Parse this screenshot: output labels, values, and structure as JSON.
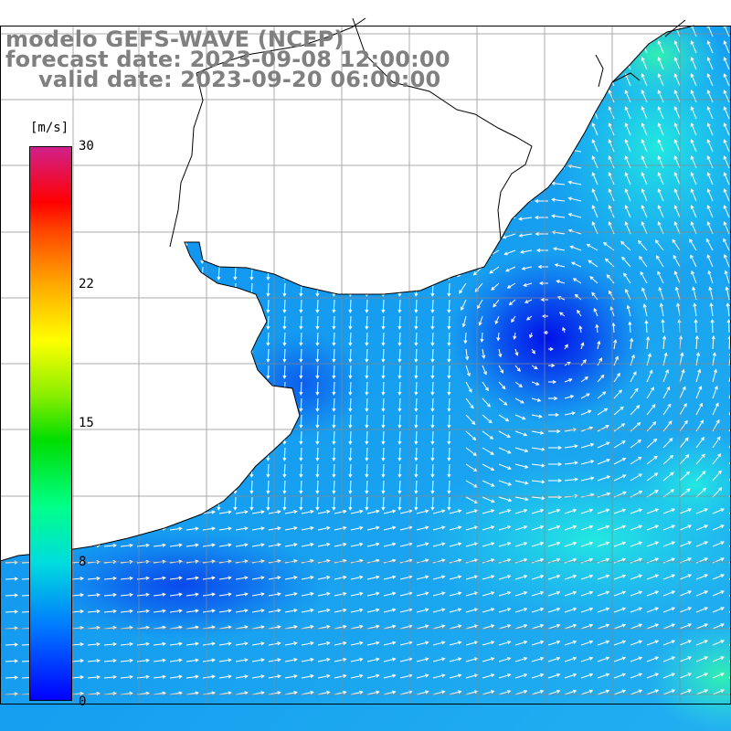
{
  "title": {
    "line1": "modelo GEFS-WAVE (NCEP)",
    "line2": "forecast date: 2023-09-08 12:00:00",
    "line3": "valid date: 2023-09-20 06:00:00"
  },
  "colorbar": {
    "unit": "[m/s]",
    "ticks": [
      "30",
      "22",
      "15",
      "8",
      "0"
    ],
    "min": 0,
    "max": 30
  },
  "colors": {
    "land": "#ffffff",
    "grid": "#888888",
    "coast": "#000000",
    "arrow": "#ffffff",
    "title": "#808080"
  }
}
